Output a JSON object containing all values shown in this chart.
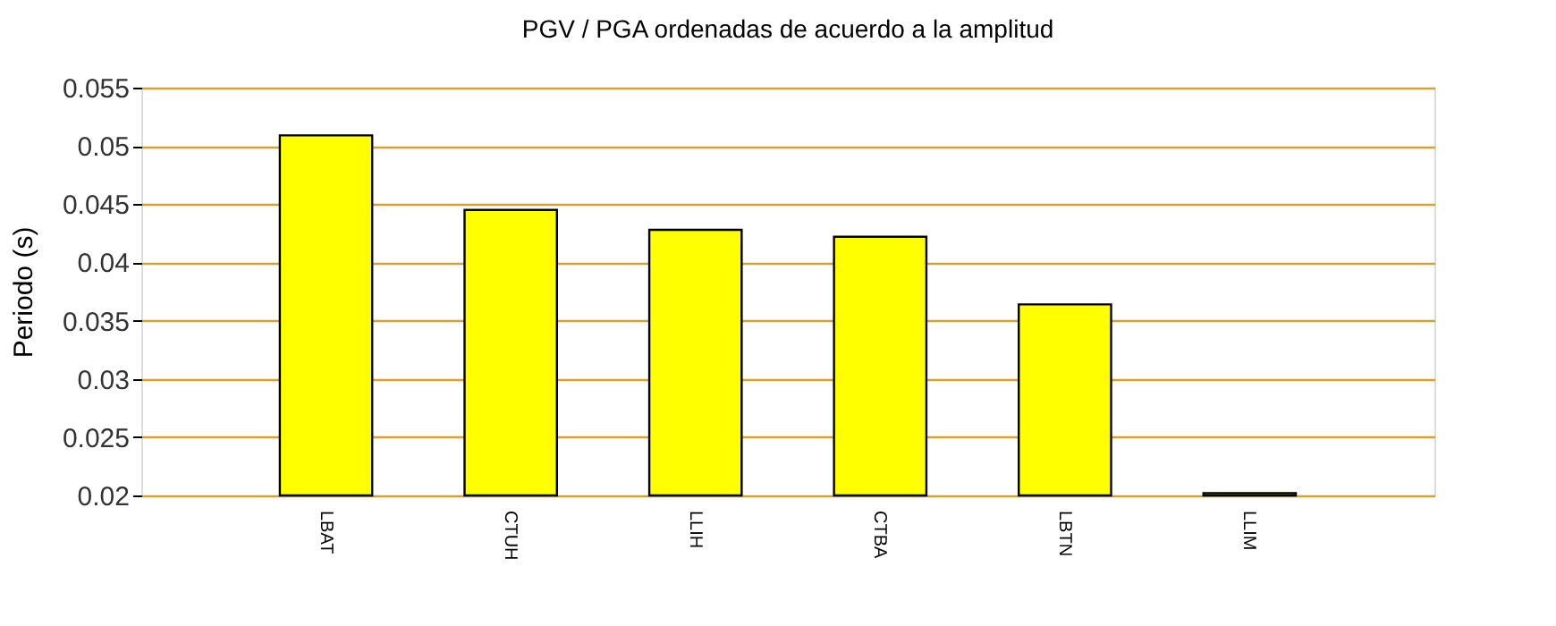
{
  "chart_data": {
    "type": "bar",
    "title": "PGV / PGA ordenadas de acuerdo a la amplitud",
    "ylabel": "Periodo (s)",
    "categories": [
      "LBAT",
      "CTUH",
      "LLIH",
      "CTBA",
      "LBTN",
      "LLIM"
    ],
    "values": [
      0.0509,
      0.0445,
      0.0428,
      0.0422,
      0.0364,
      0.0202
    ],
    "color": "#ffff00",
    "ylim": [
      0.02,
      0.055
    ],
    "yticks": [
      0.02,
      0.025,
      0.03,
      0.035,
      0.04,
      0.045,
      0.05,
      0.055
    ],
    "grid": "y"
  }
}
